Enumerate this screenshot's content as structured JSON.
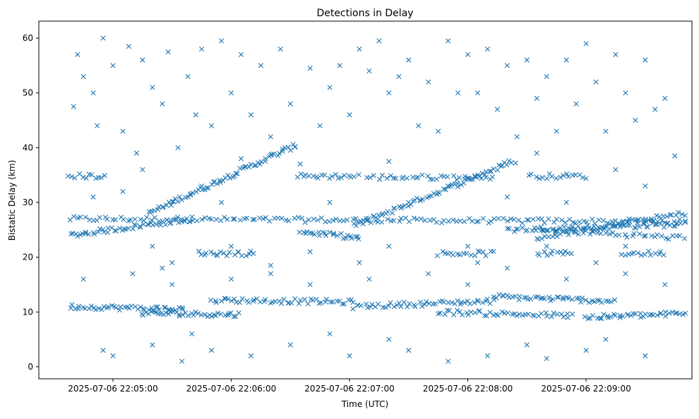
{
  "chart_data": {
    "type": "scatter",
    "title": "Detections in Delay",
    "xlabel": "Time (UTC)",
    "ylabel": "Bistatic Delay (km)",
    "x_units": "seconds relative to 2025-07-06 22:05:00",
    "xlim": [
      -37.6,
      293.7
    ],
    "ylim": [
      -2.2,
      63.1
    ],
    "grid": false,
    "marker": "x",
    "color": "#1f77b4",
    "x_ticks": [
      {
        "value": 0,
        "label": "2025-07-06 22:05:00"
      },
      {
        "value": 60,
        "label": "2025-07-06 22:06:00"
      },
      {
        "value": 120,
        "label": "2025-07-06 22:07:00"
      },
      {
        "value": 180,
        "label": "2025-07-06 22:08:00"
      },
      {
        "value": 240,
        "label": "2025-07-06 22:09:00"
      }
    ],
    "y_ticks": [
      {
        "value": 0,
        "label": "0"
      },
      {
        "value": 10,
        "label": "10"
      },
      {
        "value": 20,
        "label": "20"
      },
      {
        "value": 30,
        "label": "30"
      },
      {
        "value": 40,
        "label": "40"
      },
      {
        "value": 50,
        "label": "50"
      },
      {
        "value": 60,
        "label": "60"
      }
    ],
    "tracks": [
      {
        "t": [
          -22,
          290
        ],
        "d": [
          27,
          26.5
        ],
        "n": 160
      },
      {
        "t": [
          -22,
          40
        ],
        "d": [
          24,
          27
        ],
        "n": 50
      },
      {
        "t": [
          18,
          93
        ],
        "d": [
          28,
          40.5
        ],
        "n": 70
      },
      {
        "t": [
          95,
          125
        ],
        "d": [
          24.7,
          23.5
        ],
        "n": 25
      },
      {
        "t": [
          122,
          204
        ],
        "d": [
          25.7,
          37.6
        ],
        "n": 70
      },
      {
        "t": [
          200,
          290
        ],
        "d": [
          25,
          26
        ],
        "n": 60
      },
      {
        "t": [
          215,
          290
        ],
        "d": [
          23.5,
          28
        ],
        "n": 50
      },
      {
        "t": [
          215,
          290
        ],
        "d": [
          25,
          23.5
        ],
        "n": 40
      },
      {
        "t": [
          -22,
          -4
        ],
        "d": [
          34.8,
          34.8
        ],
        "n": 12
      },
      {
        "t": [
          93,
          124
        ],
        "d": [
          34.8,
          34.8
        ],
        "n": 20
      },
      {
        "t": [
          129,
          193
        ],
        "d": [
          34.6,
          34.6
        ],
        "n": 35
      },
      {
        "t": [
          211,
          240
        ],
        "d": [
          34.8,
          34.8
        ],
        "n": 18
      },
      {
        "t": [
          43,
          72
        ],
        "d": [
          20.7,
          20.7
        ],
        "n": 20
      },
      {
        "t": [
          165,
          193
        ],
        "d": [
          20.7,
          20.7
        ],
        "n": 18
      },
      {
        "t": [
          215,
          233
        ],
        "d": [
          20.7,
          20.7
        ],
        "n": 12
      },
      {
        "t": [
          258,
          280
        ],
        "d": [
          20.7,
          20.7
        ],
        "n": 14
      },
      {
        "t": [
          -22,
          36
        ],
        "d": [
          11,
          10.5
        ],
        "n": 45
      },
      {
        "t": [
          14,
          64
        ],
        "d": [
          9.8,
          9.5
        ],
        "n": 40
      },
      {
        "t": [
          50,
          122
        ],
        "d": [
          12.2,
          11.8
        ],
        "n": 50
      },
      {
        "t": [
          122,
          193
        ],
        "d": [
          11,
          12
        ],
        "n": 50
      },
      {
        "t": [
          165,
          233
        ],
        "d": [
          10,
          9.3
        ],
        "n": 45
      },
      {
        "t": [
          193,
          254
        ],
        "d": [
          12.8,
          12
        ],
        "n": 45
      },
      {
        "t": [
          240,
          290
        ],
        "d": [
          9,
          9.7
        ],
        "n": 40
      }
    ],
    "scatter_points": [
      [
        -20,
        47.5
      ],
      [
        -18,
        57
      ],
      [
        -15,
        53
      ],
      [
        -10,
        50
      ],
      [
        -5,
        60
      ],
      [
        -8,
        44
      ],
      [
        0,
        55
      ],
      [
        5,
        43
      ],
      [
        8,
        58.5
      ],
      [
        12,
        39
      ],
      [
        15,
        56
      ],
      [
        20,
        51
      ],
      [
        25,
        48
      ],
      [
        28,
        57.5
      ],
      [
        33,
        40
      ],
      [
        38,
        53
      ],
      [
        42,
        46
      ],
      [
        45,
        58
      ],
      [
        50,
        44
      ],
      [
        55,
        59.5
      ],
      [
        60,
        50
      ],
      [
        65,
        57
      ],
      [
        70,
        46
      ],
      [
        75,
        55
      ],
      [
        80,
        42
      ],
      [
        85,
        58
      ],
      [
        90,
        48
      ],
      [
        100,
        54.5
      ],
      [
        105,
        44
      ],
      [
        110,
        51
      ],
      [
        115,
        55
      ],
      [
        120,
        46
      ],
      [
        125,
        58
      ],
      [
        130,
        54
      ],
      [
        135,
        59.5
      ],
      [
        140,
        50
      ],
      [
        145,
        53
      ],
      [
        150,
        56
      ],
      [
        155,
        44
      ],
      [
        160,
        52
      ],
      [
        165,
        43
      ],
      [
        170,
        59.5
      ],
      [
        175,
        50
      ],
      [
        180,
        57
      ],
      [
        185,
        50
      ],
      [
        190,
        58
      ],
      [
        195,
        47
      ],
      [
        200,
        55
      ],
      [
        205,
        42
      ],
      [
        210,
        56
      ],
      [
        215,
        49
      ],
      [
        220,
        53
      ],
      [
        225,
        43
      ],
      [
        230,
        56
      ],
      [
        235,
        48
      ],
      [
        240,
        59
      ],
      [
        245,
        52
      ],
      [
        250,
        43
      ],
      [
        255,
        57
      ],
      [
        260,
        50
      ],
      [
        265,
        45
      ],
      [
        270,
        56
      ],
      [
        275,
        47
      ],
      [
        280,
        49
      ],
      [
        -15,
        16
      ],
      [
        -5,
        3
      ],
      [
        0,
        2
      ],
      [
        10,
        17
      ],
      [
        20,
        4
      ],
      [
        25,
        18
      ],
      [
        30,
        15
      ],
      [
        35,
        1
      ],
      [
        40,
        6
      ],
      [
        50,
        3
      ],
      [
        60,
        16
      ],
      [
        70,
        2
      ],
      [
        80,
        17
      ],
      [
        90,
        4
      ],
      [
        100,
        15
      ],
      [
        110,
        6
      ],
      [
        120,
        2
      ],
      [
        130,
        16
      ],
      [
        140,
        5
      ],
      [
        150,
        3
      ],
      [
        160,
        17
      ],
      [
        170,
        1
      ],
      [
        180,
        15
      ],
      [
        190,
        2
      ],
      [
        200,
        18
      ],
      [
        210,
        4
      ],
      [
        220,
        1.5
      ],
      [
        230,
        16
      ],
      [
        240,
        3
      ],
      [
        250,
        5
      ],
      [
        260,
        17
      ],
      [
        270,
        2
      ],
      [
        280,
        15
      ],
      [
        -10,
        31
      ],
      [
        5,
        32
      ],
      [
        15,
        36
      ],
      [
        30,
        19
      ],
      [
        45,
        33
      ],
      [
        55,
        30
      ],
      [
        65,
        38
      ],
      [
        80,
        18.5
      ],
      [
        95,
        37
      ],
      [
        110,
        30
      ],
      [
        125,
        19
      ],
      [
        140,
        37.5
      ],
      [
        150,
        30
      ],
      [
        170,
        33
      ],
      [
        185,
        19
      ],
      [
        200,
        31
      ],
      [
        215,
        39
      ],
      [
        230,
        30
      ],
      [
        245,
        19
      ],
      [
        255,
        36
      ],
      [
        270,
        33
      ],
      [
        285,
        38.5
      ],
      [
        20,
        22
      ],
      [
        60,
        22
      ],
      [
        100,
        21
      ],
      [
        140,
        22
      ],
      [
        180,
        22
      ],
      [
        220,
        22
      ],
      [
        260,
        22
      ]
    ]
  }
}
